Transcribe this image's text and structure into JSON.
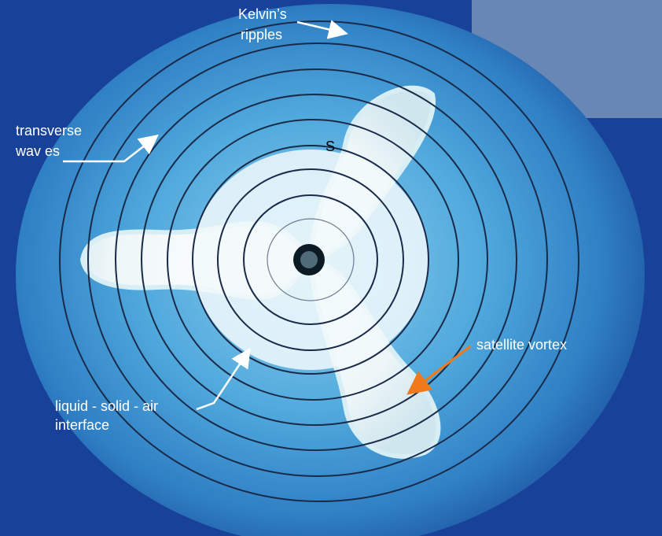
{
  "annotations": {
    "kelvin": [
      "Kelvin’s",
      "ripples"
    ],
    "transverse": [
      "transverse",
      "wav es"
    ],
    "s": "S",
    "satellite": "satellite vortex",
    "interface": [
      "liquid - solid -  air",
      "interface"
    ]
  }
}
